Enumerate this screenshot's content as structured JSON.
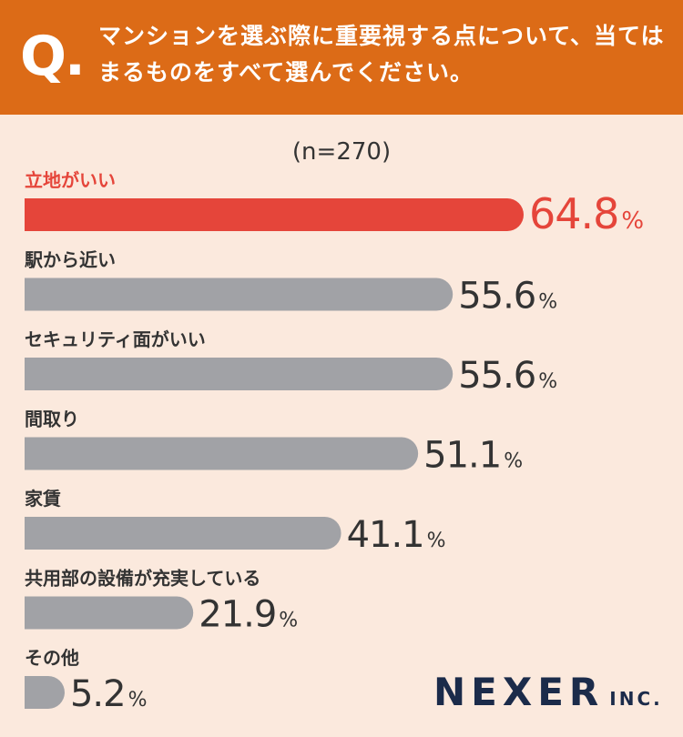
{
  "header": {
    "q_mark": "Q.",
    "question": "マンションを選ぶ際に重要視する点について、当てはまるものをすべて選んでください。"
  },
  "sample_size": "(n=270)",
  "chart_data": {
    "type": "bar",
    "orientation": "horizontal",
    "unit": "%",
    "categories": [
      "立地がいい",
      "駅から近い",
      "セキュリティ面がいい",
      "間取り",
      "家賃",
      "共用部の設備が充実している",
      "その他"
    ],
    "values": [
      64.8,
      55.6,
      55.6,
      51.1,
      41.1,
      21.9,
      5.2
    ],
    "value_labels": [
      "64.8",
      "55.6",
      "55.6",
      "51.1",
      "41.1",
      "21.9",
      "5.2"
    ],
    "highlight_index": 0,
    "colors": {
      "highlight": "#e5453a",
      "default": "#a1a2a6",
      "text": "#333333"
    }
  },
  "logo": {
    "main": "NEXER",
    "sub": "INC."
  }
}
